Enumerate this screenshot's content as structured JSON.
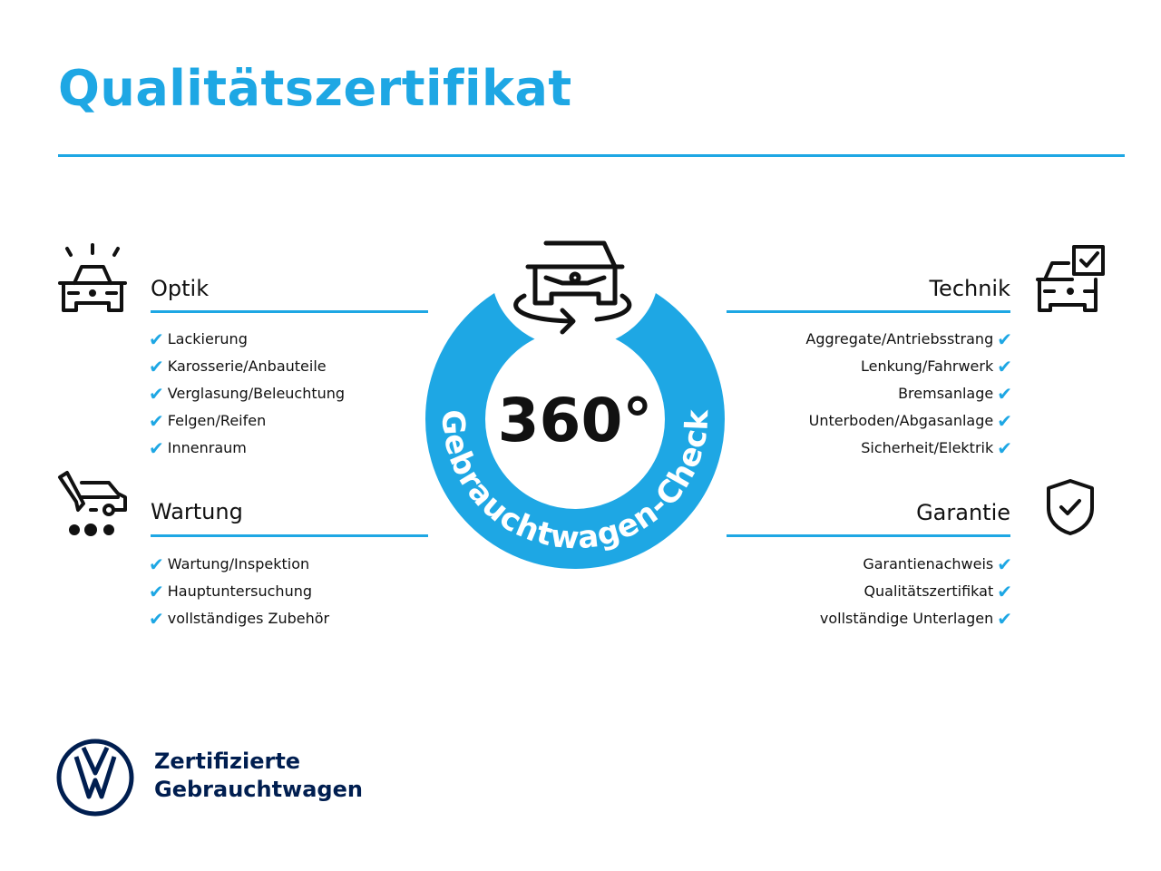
{
  "title": "Qualitätszertifikat",
  "colors": {
    "accent": "#1ea7e4",
    "brand": "#001e50"
  },
  "badge": {
    "value": "360°",
    "ring_text": "Gebrauchtwagen-Check",
    "icon": "car-rotate-icon"
  },
  "sections": {
    "optik": {
      "title": "Optik",
      "icon": "car-lights-icon",
      "items": [
        "Lackierung",
        "Karosserie/Anbauteile",
        "Verglasung/Beleuchtung",
        "Felgen/Reifen",
        "Innenraum"
      ]
    },
    "wartung": {
      "title": "Wartung",
      "icon": "service-van-icon",
      "items": [
        "Wartung/Inspektion",
        "Hauptuntersuchung",
        "vollständiges Zubehör"
      ]
    },
    "technik": {
      "title": "Technik",
      "icon": "car-checklist-icon",
      "items": [
        "Aggregate/Antriebsstrang",
        "Lenkung/Fahrwerk",
        "Bremsanlage",
        "Unterboden/Abgasanlage",
        "Sicherheit/Elektrik"
      ]
    },
    "garantie": {
      "title": "Garantie",
      "icon": "shield-check-icon",
      "items": [
        "Garantienachweis",
        "Qualitätszertifikat",
        "vollständige Unterlagen"
      ]
    }
  },
  "check_mark": "✔",
  "footer": {
    "line1": "Zertifizierte",
    "line2": "Gebrauchtwagen",
    "logo": "vw-logo"
  }
}
